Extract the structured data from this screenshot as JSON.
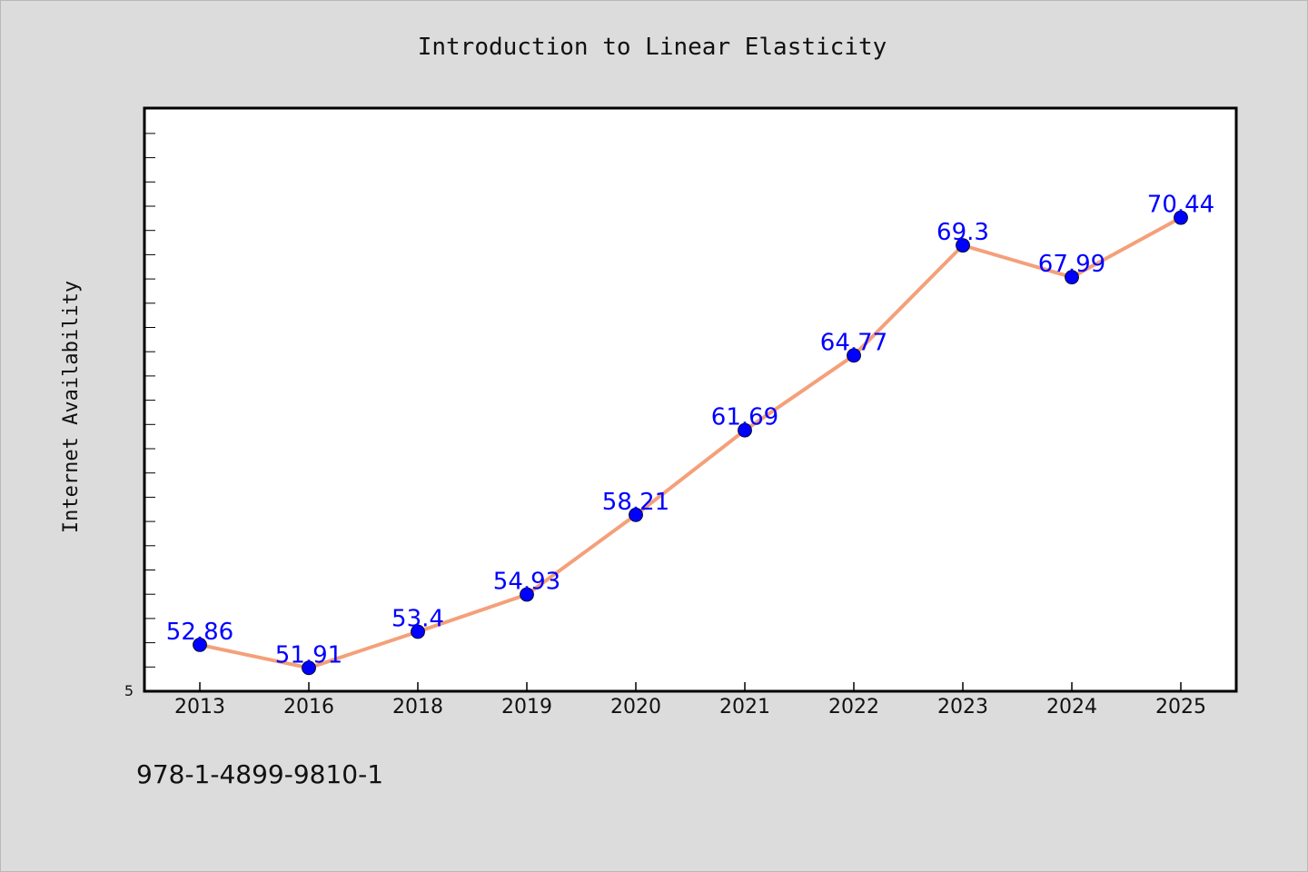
{
  "chart_data": {
    "type": "line",
    "title": "Introduction to Linear Elasticity",
    "xlabel": "",
    "ylabel": "Internet Availability",
    "categories": [
      "2013",
      "2016",
      "2018",
      "2019",
      "2020",
      "2021",
      "2022",
      "2023",
      "2024",
      "2025"
    ],
    "series": [
      {
        "values": [
          52.86,
          51.91,
          53.4,
          54.93,
          58.21,
          61.69,
          64.77,
          69.3,
          67.99,
          70.44
        ],
        "labels": [
          "52.86",
          "51.91",
          "53.4",
          "54.93",
          "58.21",
          "61.69",
          "64.77",
          "69.3",
          "67.99",
          "70.44"
        ],
        "line_color": "#f4a07a",
        "marker_color": "#0000ff"
      }
    ],
    "ylim": [
      50.95,
      74.95
    ],
    "y_tick_labels": [
      "5"
    ],
    "grid": false,
    "legend": "none"
  },
  "footer": {
    "isbn": "978-1-4899-9810-1"
  },
  "colors": {
    "background": "#dcdcdc",
    "plot_area": "#ffffff",
    "line": "#f4a07a",
    "markers": "#0000ff",
    "data_labels": "#0000ff"
  }
}
